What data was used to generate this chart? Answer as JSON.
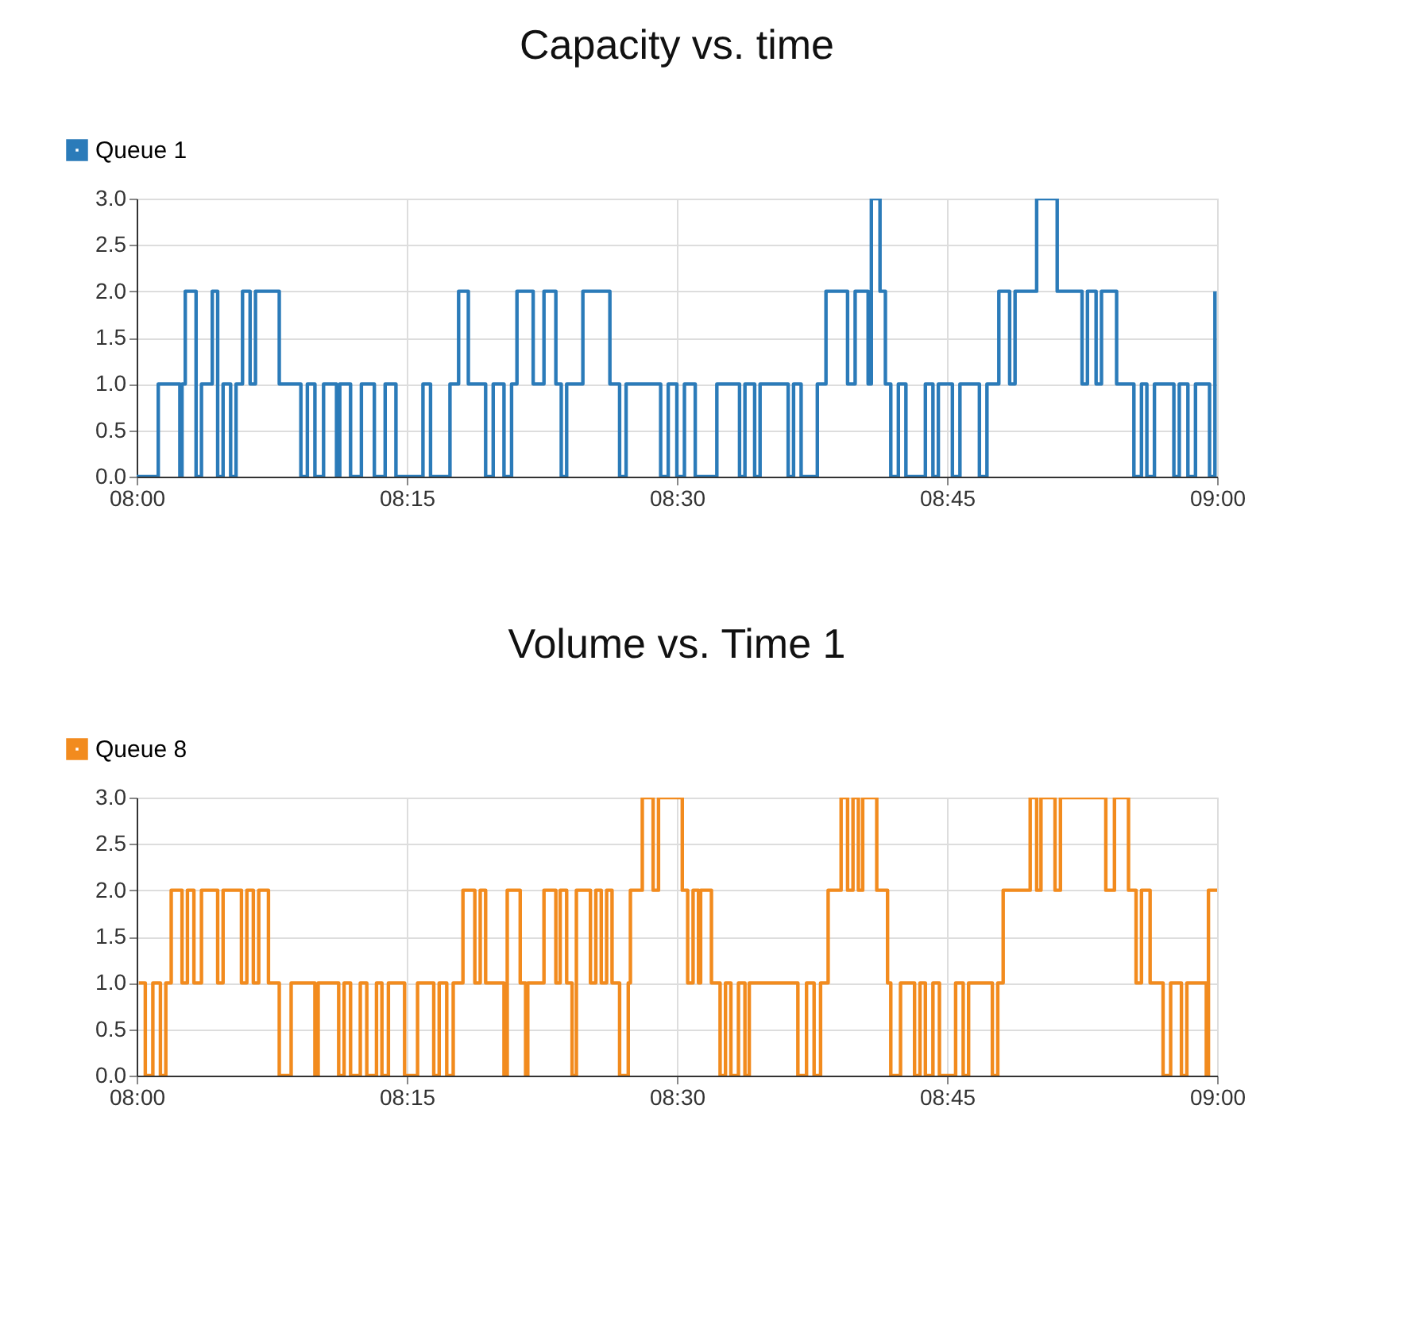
{
  "chart_data": [
    {
      "type": "step",
      "title": "Capacity vs. time",
      "legend": "top left",
      "grid": true,
      "marker": "none",
      "line_style": "solid",
      "xlim": [
        8,
        9
      ],
      "xticks": [
        {
          "value": 8,
          "label": "08:00"
        },
        {
          "value": 8.25,
          "label": "08:15"
        },
        {
          "value": 8.5,
          "label": "08:30"
        },
        {
          "value": 8.75,
          "label": "08:45"
        },
        {
          "value": 9,
          "label": "09:00"
        }
      ],
      "ylim": [
        0,
        3
      ],
      "yticks": [
        {
          "value": 0,
          "label": "0.0"
        },
        {
          "value": 0.5,
          "label": "0.5"
        },
        {
          "value": 1,
          "label": "1.0"
        },
        {
          "value": 1.5,
          "label": "1.5"
        },
        {
          "value": 2,
          "label": "2.0"
        },
        {
          "value": 2.5,
          "label": "2.5"
        },
        {
          "value": 3,
          "label": "3.0"
        }
      ],
      "series": [
        {
          "name": "Queue 1",
          "color": "#2b7bb9",
          "x": [
            8.0,
            8.02,
            8.04,
            8.042,
            8.045,
            8.055,
            8.06,
            8.07,
            8.075,
            8.08,
            8.087,
            8.092,
            8.098,
            8.105,
            8.11,
            8.132,
            8.152,
            8.158,
            8.165,
            8.173,
            8.185,
            8.188,
            8.198,
            8.208,
            8.22,
            8.23,
            8.24,
            8.265,
            8.272,
            8.29,
            8.298,
            8.307,
            8.323,
            8.33,
            8.34,
            8.347,
            8.352,
            8.367,
            8.377,
            8.388,
            8.393,
            8.398,
            8.413,
            8.438,
            8.447,
            8.453,
            8.485,
            8.492,
            8.5,
            8.507,
            8.517,
            8.537,
            8.558,
            8.563,
            8.572,
            8.577,
            8.603,
            8.608,
            8.615,
            8.63,
            8.638,
            8.658,
            8.665,
            8.677,
            8.68,
            8.688,
            8.693,
            8.698,
            8.705,
            8.712,
            8.73,
            8.737,
            8.742,
            8.755,
            8.762,
            8.78,
            8.787,
            8.798,
            8.808,
            8.813,
            8.833,
            8.852,
            8.875,
            8.88,
            8.888,
            8.893,
            8.907,
            8.923,
            8.93,
            8.935,
            8.942,
            8.96,
            8.965,
            8.973,
            8.98,
            8.993,
            8.998
          ],
          "values": [
            0,
            1,
            0,
            1,
            2,
            0,
            1,
            2,
            0,
            1,
            0,
            1,
            2,
            1,
            2,
            1,
            0,
            1,
            0,
            1,
            0,
            1,
            0,
            1,
            0,
            1,
            0,
            1,
            0,
            1,
            2,
            1,
            0,
            1,
            0,
            1,
            2,
            1,
            2,
            1,
            0,
            1,
            2,
            1,
            0,
            1,
            0,
            1,
            0,
            1,
            0,
            1,
            0,
            1,
            0,
            1,
            0,
            1,
            0,
            1,
            2,
            1,
            2,
            1,
            3,
            2,
            1,
            0,
            1,
            0,
            1,
            0,
            1,
            0,
            1,
            0,
            1,
            2,
            1,
            2,
            3,
            2,
            1,
            2,
            1,
            2,
            1,
            0,
            1,
            0,
            1,
            0,
            1,
            0,
            1,
            0,
            2
          ]
        }
      ]
    },
    {
      "type": "step",
      "title": "Volume vs. Time 1",
      "legend": "top left",
      "grid": true,
      "marker": "none",
      "line_style": "solid",
      "xlim": [
        8,
        9
      ],
      "xticks": [
        {
          "value": 8,
          "label": "08:00"
        },
        {
          "value": 8.25,
          "label": "08:15"
        },
        {
          "value": 8.5,
          "label": "08:30"
        },
        {
          "value": 8.75,
          "label": "08:45"
        },
        {
          "value": 9,
          "label": "09:00"
        }
      ],
      "ylim": [
        0,
        3
      ],
      "yticks": [
        {
          "value": 0,
          "label": "0.0"
        },
        {
          "value": 0.5,
          "label": "0.5"
        },
        {
          "value": 1,
          "label": "1.0"
        },
        {
          "value": 1.5,
          "label": "1.5"
        },
        {
          "value": 2,
          "label": "2.0"
        },
        {
          "value": 2.5,
          "label": "2.5"
        },
        {
          "value": 3,
          "label": "3.0"
        }
      ],
      "series": [
        {
          "name": "Queue 8",
          "color": "#f28b1e",
          "x": [
            8.002,
            8.008,
            8.015,
            8.022,
            8.027,
            8.032,
            8.042,
            8.047,
            8.053,
            8.06,
            8.075,
            8.08,
            8.097,
            8.102,
            8.108,
            8.113,
            8.122,
            8.132,
            8.143,
            8.165,
            8.168,
            8.187,
            8.192,
            8.198,
            8.207,
            8.213,
            8.222,
            8.227,
            8.233,
            8.248,
            8.26,
            8.275,
            8.28,
            8.287,
            8.293,
            8.302,
            8.313,
            8.318,
            8.323,
            8.34,
            8.343,
            8.355,
            8.36,
            8.362,
            8.377,
            8.388,
            8.392,
            8.398,
            8.403,
            8.407,
            8.42,
            8.425,
            8.43,
            8.435,
            8.44,
            8.447,
            8.455,
            8.457,
            8.468,
            8.478,
            8.483,
            8.505,
            8.51,
            8.515,
            8.52,
            8.522,
            8.532,
            8.54,
            8.545,
            8.55,
            8.557,
            8.563,
            8.567,
            8.612,
            8.62,
            8.627,
            8.633,
            8.64,
            8.652,
            8.658,
            8.663,
            8.668,
            8.672,
            8.685,
            8.695,
            8.698,
            8.707,
            8.72,
            8.725,
            8.73,
            8.737,
            8.743,
            8.758,
            8.765,
            8.77,
            8.792,
            8.797,
            8.802,
            8.827,
            8.833,
            8.837,
            8.85,
            8.855,
            8.897,
            8.905,
            8.918,
            8.925,
            8.93,
            8.938,
            8.95,
            8.957,
            8.967,
            8.972,
            8.99,
            8.992,
            9.0
          ],
          "values": [
            1,
            0,
            1,
            0,
            1,
            2,
            1,
            2,
            1,
            2,
            1,
            2,
            1,
            2,
            1,
            2,
            1,
            0,
            1,
            0,
            1,
            0,
            1,
            0,
            1,
            0,
            1,
            0,
            1,
            0,
            1,
            0,
            1,
            0,
            1,
            2,
            1,
            2,
            1,
            0,
            2,
            1,
            0,
            1,
            2,
            1,
            2,
            1,
            0,
            2,
            1,
            2,
            1,
            2,
            1,
            0,
            1,
            2,
            3,
            2,
            3,
            2,
            1,
            2,
            1,
            2,
            1,
            0,
            1,
            0,
            1,
            0,
            1,
            0,
            1,
            0,
            1,
            2,
            3,
            2,
            3,
            2,
            3,
            2,
            1,
            0,
            1,
            0,
            1,
            0,
            1,
            0,
            1,
            0,
            1,
            0,
            1,
            2,
            3,
            2,
            3,
            2,
            3,
            2,
            3,
            2,
            1,
            2,
            1,
            0,
            1,
            0,
            1,
            0,
            2,
            2
          ]
        }
      ]
    }
  ]
}
